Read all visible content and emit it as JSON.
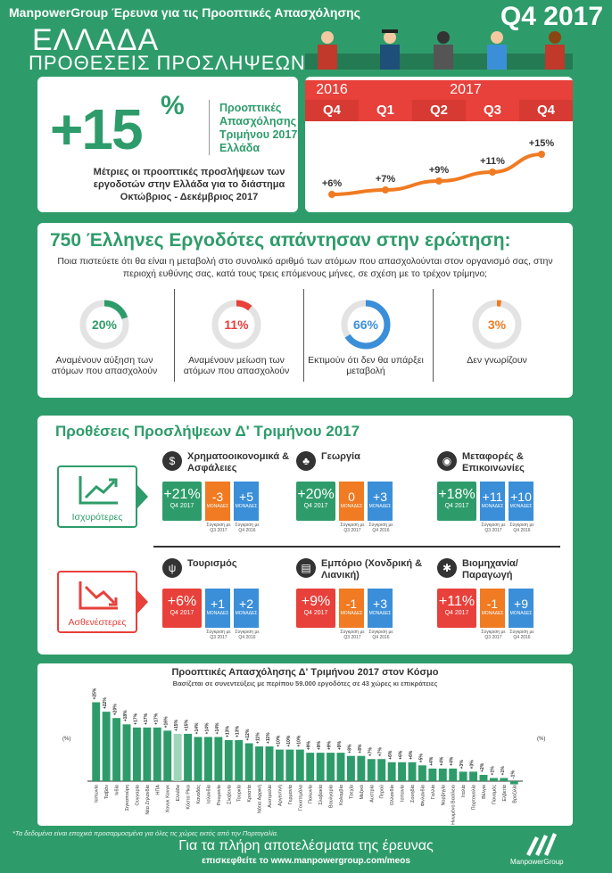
{
  "header": {
    "survey": "ManpowerGroup Έρευνα για τις Προοπτικές Απασχόλησης",
    "quarter": "Q4 2017",
    "country": "ΕΛΛΑΔΑ",
    "subtitle": "ΠΡΟΘΕΣΕΙΣ ΠΡΟΣΛΗΨΕΩΝ"
  },
  "kpi": {
    "value": "+15",
    "pct": "%",
    "label": "Προοπτικές Απασχόλησης Δ' Τριμήνου 2017 Ελλάδα",
    "desc": "Μέτριες οι προοπτικές προσλήψεων των εργοδοτών στην Ελλάδα για το διάστημα Οκτώβριος - Δεκέμβριος 2017"
  },
  "trend": {
    "year_prev": "2016",
    "year_cur": "2017",
    "quarters": [
      "Q4",
      "Q1",
      "Q2",
      "Q3",
      "Q4"
    ],
    "labels": [
      "+6%",
      "+7%",
      "+9%",
      "+11%",
      "+15%"
    ],
    "values": [
      6,
      7,
      9,
      11,
      15
    ],
    "accent": "#e8403a",
    "line": "#f07b22"
  },
  "survey": {
    "title": "750 Έλληνες Εργοδότες απάντησαν στην ερώτηση:",
    "question": "Ποια πιστεύετε ότι θα είναι η μεταβολή στο συνολικό αριθμό των ατόμων που απασχολούνται στον οργανισμό σας, στην περιοχή ευθύνης σας, κατά τους τρεις επόμενους μήνες, σε σχέση με το τρέχον τρίμηνο;",
    "answers": [
      {
        "value": "20%",
        "pct": 20,
        "color": "#2e9c6a",
        "caption": "Αναμένουν αύξηση των ατόμων που απασχολούν"
      },
      {
        "value": "11%",
        "pct": 11,
        "color": "#e8403a",
        "caption": "Αναμένουν μείωση των ατόμων που απασχολούν"
      },
      {
        "value": "66%",
        "pct": 66,
        "color": "#3b8fd8",
        "caption": "Εκτιμούν ότι δεν θα υπάρξει μεταβολή"
      },
      {
        "value": "3%",
        "pct": 3,
        "color": "#f07b22",
        "caption": "Δεν γνωρίζουν"
      }
    ]
  },
  "sectors": {
    "title": "Προθέσεις Προσλήψεων Δ' Τριμήνου 2017",
    "stronger_label": "Ισχυρότερες",
    "weaker_label": "Ασθενέστερες",
    "main_sub": "Q4 2017",
    "cmp_unit": "ΜΟΝΑΔΕΣ",
    "cmp_q3": "Σύγκριση με Q3 2017",
    "cmp_q4": "Σύγκριση με Q4 2016",
    "items": [
      {
        "name": "Χρηματοοικονομικά & Ασφάλειες",
        "icon": "piggy-bank-icon",
        "glyph": "$",
        "value": "+21%",
        "q3": "-3",
        "q4": "+5",
        "q3_dir": "down",
        "q4_dir": "up"
      },
      {
        "name": "Γεωργία",
        "icon": "wheat-icon",
        "glyph": "♣",
        "value": "+20%",
        "q3": "0",
        "q4": "+3",
        "q3_dir": "flat",
        "q4_dir": "up"
      },
      {
        "name": "Μεταφορές & Επικοινωνίες",
        "icon": "car-icon",
        "glyph": "◉",
        "value": "+18%",
        "q3": "+11",
        "q4": "+10",
        "q3_dir": "up",
        "q4_dir": "up"
      },
      {
        "name": "Τουρισμός",
        "icon": "cutlery-icon",
        "glyph": "ψ",
        "value": "+6%",
        "q3": "+1",
        "q4": "+2",
        "q3_dir": "up",
        "q4_dir": "up"
      },
      {
        "name": "Εμπόριο (Χονδρική & Λιανική)",
        "icon": "shopping-bag-icon",
        "glyph": "▤",
        "value": "+9%",
        "q3": "-1",
        "q4": "+3",
        "q3_dir": "down",
        "q4_dir": "up"
      },
      {
        "name": "Βιομηχανία/ Παραγωγή",
        "icon": "gears-icon",
        "glyph": "✱",
        "value": "+11%",
        "q3": "-1",
        "q4": "+9",
        "q3_dir": "down",
        "q4_dir": "up"
      }
    ]
  },
  "world": {
    "title": "Προοπτικές Απασχόλησης Δ' Τριμήνου 2017 στον Κόσμο",
    "subtitle": "Βασίζεται σε συνεντεύξεις με περίπου 59.000 εργοδότες σε 43 χώρες κι επικράτειες",
    "unit_label": "(%)",
    "chart_data": {
      "type": "bar",
      "categories": [
        "Ιαπωνία",
        "Ταϊβάν",
        "Ινδία",
        "Σιγκαπούρη",
        "Ουγγαρία",
        "Νέα Ζηλανδία",
        "ΗΠΑ",
        "Χονγκ Κονγκ",
        "Ελλάδα",
        "Κόστα Ρίκα",
        "Καναδάς",
        "Ισλανδία",
        "Ρουμανία",
        "Σλοβενία",
        "Τουρκία",
        "Κροατία",
        "Νότια Αφρική",
        "Αυστραλία",
        "Αργεντινή",
        "Γερμανία",
        "Γουατεμάλα",
        "Πολωνία",
        "Σλοβακία",
        "Βουλγαρία",
        "Κολομβία",
        "Τσεχία",
        "Μεξικό",
        "Αυστρία",
        "Περού",
        "Ολλανδία",
        "Ισπανία",
        "Σουηδία",
        "Φινλανδία",
        "Γαλλία",
        "Νορβηγία",
        "Ηνωμένο Βασίλειο",
        "Ιταλία",
        "Πορτογαλία",
        "Βέλγιο",
        "Παναμάς",
        "Ελβετία",
        "Βραζιλία"
      ],
      "values": [
        25,
        22,
        20,
        18,
        17,
        17,
        17,
        16,
        15,
        15,
        14,
        14,
        14,
        13,
        13,
        12,
        11,
        11,
        10,
        10,
        10,
        9,
        9,
        9,
        9,
        8,
        8,
        7,
        7,
        6,
        6,
        6,
        5,
        4,
        4,
        4,
        3,
        3,
        2,
        1,
        1,
        -1
      ],
      "labels": [
        "+25%",
        "+22%",
        "+20%",
        "+18%",
        "+17%",
        "+17%",
        "+17%",
        "+16%",
        "+15%",
        "+15%",
        "+14%",
        "+14%",
        "+14%",
        "+13%",
        "+13%",
        "+12%",
        "+11%",
        "+11%",
        "+10%",
        "+10%",
        "+10%",
        "+9%",
        "+9%",
        "+9%",
        "+9%",
        "+8%",
        "+8%",
        "+7%",
        "+7%",
        "+6%",
        "+6%",
        "+6%",
        "+5%",
        "+4%",
        "+4%",
        "+4%",
        "+3%",
        "+3%",
        "+2%",
        "+1%",
        "+1%",
        "-1%"
      ],
      "highlight": "Ελλάδα",
      "ylim": [
        -2,
        26
      ],
      "color": "#2e9c6a",
      "highlight_color": "#9fd6b8"
    }
  },
  "footer": {
    "note": "*Τα δεδομένα είναι εποχικά προσαρμοσμένα για όλες τις χώρες εκτός από την Πορτογαλία.",
    "line1": "Για τα πλήρη αποτελέσματα της έρευνας",
    "line2": "επισκεφθείτε το www.manpowergroup.com/meos",
    "logo": "ManpowerGroup"
  }
}
